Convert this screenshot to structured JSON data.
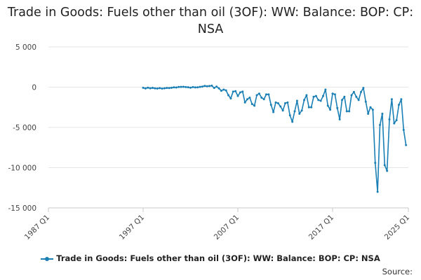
{
  "colors": {
    "series": "#1a7fb5",
    "grid": "#e6e6e6",
    "axis": "#c8c8c8"
  },
  "legend_label": "Trade in Goods: Fuels other than oil (3OF): WW: Balance: BOP: CP: NSA",
  "source_label": "Source:",
  "chart_data": {
    "type": "line",
    "title": "Trade in Goods: Fuels other than oil (3OF): WW: Balance: BOP: CP: NSA",
    "xlabel": "",
    "ylabel": "",
    "x_tick_labels": [
      "1987 Q1",
      "1997 Q1",
      "2007 Q1",
      "2017 Q1",
      "2025 Q1"
    ],
    "y_tick_labels": [
      "5 000",
      "0",
      "-5 000",
      "-10 000",
      "-15 000"
    ],
    "y_ticks": [
      5000,
      0,
      -5000,
      -10000,
      -15000
    ],
    "xlim": [
      "1987 Q1",
      "2025 Q1"
    ],
    "ylim": [
      -15000,
      5000
    ],
    "grid": "horizontal",
    "legend_position": "bottom",
    "series": [
      {
        "name": "Trade in Goods: Fuels other than oil (3OF): WW: Balance: BOP: CP: NSA",
        "x_start": "1997 Q1",
        "frequency": "quarterly",
        "values": [
          -80,
          -160,
          -60,
          -140,
          -90,
          -150,
          -170,
          -120,
          -180,
          -140,
          -100,
          -110,
          -80,
          -20,
          -40,
          20,
          30,
          40,
          10,
          -10,
          -60,
          10,
          -30,
          -20,
          30,
          70,
          150,
          110,
          140,
          180,
          -100,
          70,
          -150,
          -450,
          -300,
          -400,
          -1000,
          -1400,
          -550,
          -500,
          -1100,
          -650,
          -550,
          -1900,
          -1500,
          -1300,
          -2100,
          -2300,
          -1000,
          -800,
          -1300,
          -1500,
          -900,
          -900,
          -2200,
          -3100,
          -1900,
          -2000,
          -2400,
          -2900,
          -2000,
          -1900,
          -3500,
          -4300,
          -3000,
          -1700,
          -3300,
          -2900,
          -1600,
          -1000,
          -2500,
          -2500,
          -1200,
          -1100,
          -1600,
          -1700,
          -1100,
          -300,
          -2300,
          -2800,
          -800,
          -900,
          -2600,
          -4000,
          -1600,
          -1200,
          -3000,
          -3000,
          -1000,
          -600,
          -1200,
          -1600,
          -600,
          -100,
          -1800,
          -3300,
          -2500,
          -2800,
          -9400,
          -13000,
          -4700,
          -3300,
          -9700,
          -10400,
          -4000,
          -1500,
          -4500,
          -4100,
          -2200,
          -1500,
          -5300,
          -7200
        ]
      }
    ]
  }
}
